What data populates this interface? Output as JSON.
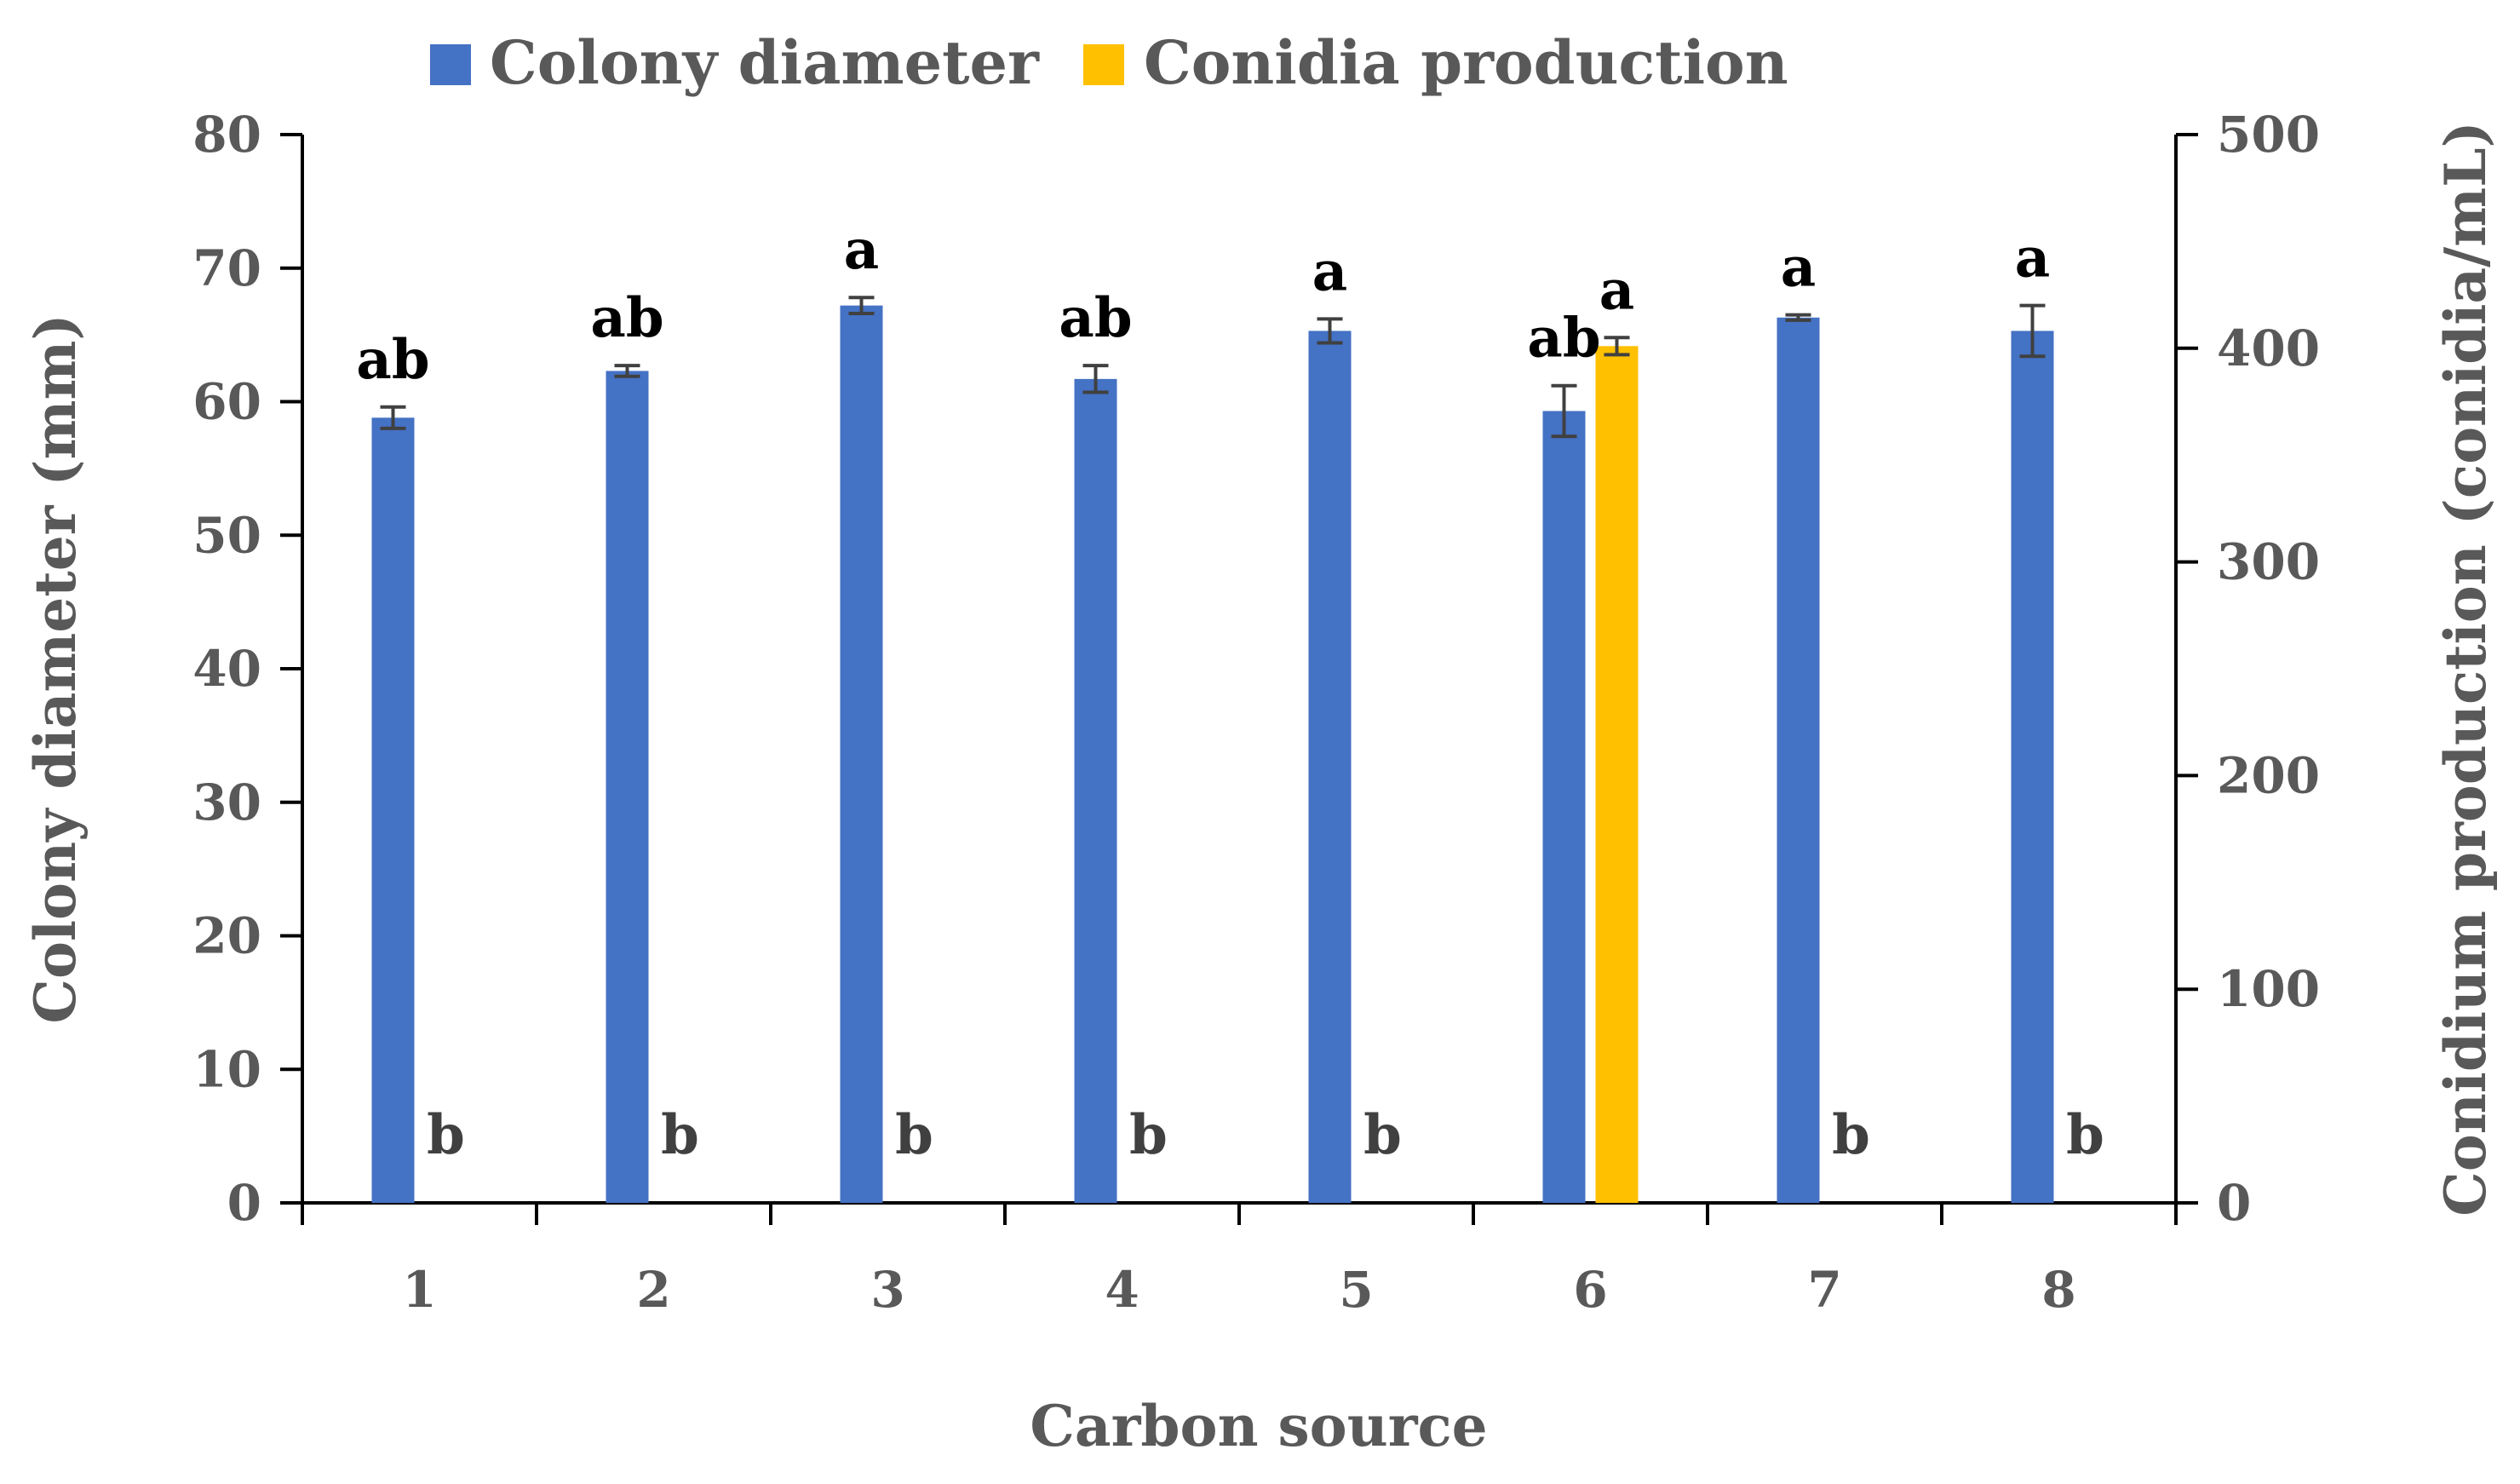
{
  "chart_data": {
    "type": "bar",
    "title": "",
    "xlabel": "Carbon source",
    "ylabel_left": "Colony diameter (mm)",
    "ylabel_right": "Conidium production (conidia/mL)",
    "categories": [
      "1",
      "2",
      "3",
      "4",
      "5",
      "6",
      "7",
      "8"
    ],
    "y_left": {
      "min": 0,
      "max": 80,
      "ticks": [
        "0",
        "10",
        "20",
        "30",
        "40",
        "50",
        "60",
        "70",
        "80"
      ]
    },
    "y_right": {
      "min": 0,
      "max": 500,
      "ticks": [
        "0",
        "100",
        "200",
        "300",
        "400",
        "500"
      ]
    },
    "legend_position": "top-center",
    "grid": false,
    "series": [
      {
        "name": "Colony diameter",
        "axis": "left",
        "color": "#4472C4",
        "values": [
          58.8,
          62.3,
          67.2,
          61.7,
          65.3,
          59.3,
          66.3,
          65.3
        ],
        "errors": [
          0.8,
          0.4,
          0.6,
          1.0,
          0.9,
          1.9,
          0.2,
          1.9
        ],
        "letters": [
          "ab",
          "ab",
          "a",
          "ab",
          "a",
          "ab",
          "a",
          "a"
        ]
      },
      {
        "name": "Conidia production",
        "axis": "right",
        "color": "#FFC000",
        "values": [
          0,
          0,
          0,
          0,
          0,
          401,
          0,
          0
        ],
        "errors": [
          0,
          0,
          0,
          0,
          0,
          4,
          0,
          0
        ],
        "letters": [
          "b",
          "b",
          "b",
          "b",
          "b",
          "a",
          "b",
          "b"
        ]
      }
    ]
  }
}
